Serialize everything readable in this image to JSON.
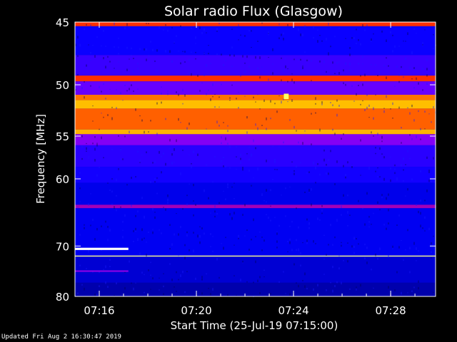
{
  "chart_data": {
    "type": "heatmap",
    "title": "Solar radio Flux (Glasgow)",
    "xlabel": "Start Time (25-Jul-19 07:15:00)",
    "ylabel": "Frequency [MHz]",
    "x_ticks": [
      "07:16",
      "07:20",
      "07:24",
      "07:28"
    ],
    "x_tick_minutes": [
      1,
      5,
      9,
      13
    ],
    "xlim_minutes": [
      0,
      14.85
    ],
    "y_ticks": [
      45,
      50,
      55,
      60,
      70,
      80
    ],
    "y_scale": "reciprocal",
    "ylim": [
      45,
      80
    ],
    "colormap": [
      "#00007f",
      "#0000ff",
      "#7f00ff",
      "#ff0000",
      "#ffa000",
      "#ffff00",
      "#ffffff"
    ],
    "bands": [
      {
        "freq_from": 45.0,
        "freq_to": 45.3,
        "level": 0.55
      },
      {
        "freq_from": 45.3,
        "freq_to": 47.5,
        "level": 0.18
      },
      {
        "freq_from": 47.5,
        "freq_to": 49.2,
        "level": 0.24
      },
      {
        "freq_from": 49.2,
        "freq_to": 49.7,
        "level": 0.55
      },
      {
        "freq_from": 49.7,
        "freq_to": 50.9,
        "level": 0.3
      },
      {
        "freq_from": 50.9,
        "freq_to": 51.4,
        "level": 0.62
      },
      {
        "freq_from": 51.4,
        "freq_to": 52.2,
        "level": 0.72
      },
      {
        "freq_from": 52.2,
        "freq_to": 54.3,
        "level": 0.6
      },
      {
        "freq_from": 54.3,
        "freq_to": 54.8,
        "level": 0.7
      },
      {
        "freq_from": 54.8,
        "freq_to": 56.0,
        "level": 0.34
      },
      {
        "freq_from": 56.0,
        "freq_to": 58.5,
        "level": 0.22
      },
      {
        "freq_from": 58.5,
        "freq_to": 60.5,
        "level": 0.19
      },
      {
        "freq_from": 60.5,
        "freq_to": 63.5,
        "level": 0.14
      },
      {
        "freq_from": 63.5,
        "freq_to": 64.0,
        "level": 0.38
      },
      {
        "freq_from": 64.0,
        "freq_to": 71.7,
        "level": 0.15
      },
      {
        "freq_from": 71.7,
        "freq_to": 71.9,
        "level": 0.93
      },
      {
        "freq_from": 71.9,
        "freq_to": 77.0,
        "level": 0.11
      },
      {
        "freq_from": 77.0,
        "freq_to": 80.0,
        "level": 0.06
      }
    ],
    "events": [
      {
        "time_from_min": 0,
        "time_to_min": 2.2,
        "freq_from": 70.3,
        "freq_to": 70.7,
        "level": 1.0
      },
      {
        "time_from_min": 8.6,
        "time_to_min": 8.8,
        "freq_from": 50.8,
        "freq_to": 51.3,
        "level": 0.9
      },
      {
        "time_from_min": 0,
        "time_to_min": 2.2,
        "freq_from": 74.5,
        "freq_to": 74.8,
        "level": 0.35
      }
    ]
  },
  "footer": {
    "updated": "Updated Fri Aug  2 16:30:47 2019"
  }
}
